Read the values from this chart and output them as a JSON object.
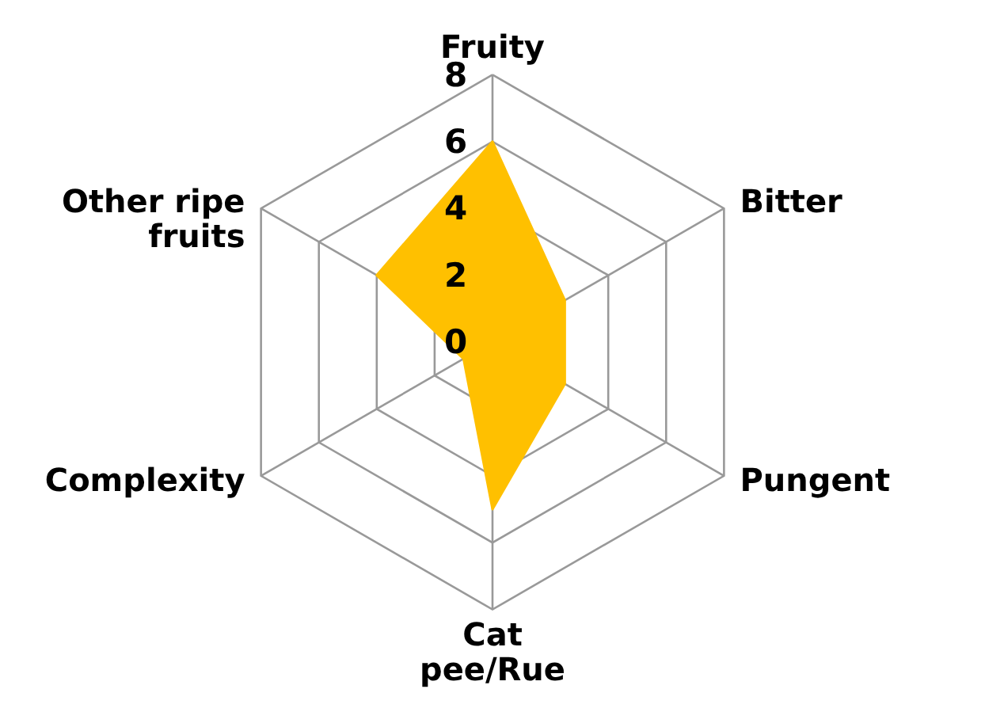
{
  "chart_data": {
    "type": "radar",
    "categories": [
      "Fruity",
      "Bitter",
      "Pungent",
      "Cat pee/Rue",
      "Complexity",
      "Other ripe fruits"
    ],
    "series": [
      {
        "color": "#ffc000",
        "values": [
          6,
          2.5,
          2.5,
          5,
          1,
          4
        ]
      }
    ],
    "ylim": [
      0,
      8
    ],
    "yticks": [
      0,
      2,
      4,
      6,
      8
    ],
    "grid": true
  }
}
